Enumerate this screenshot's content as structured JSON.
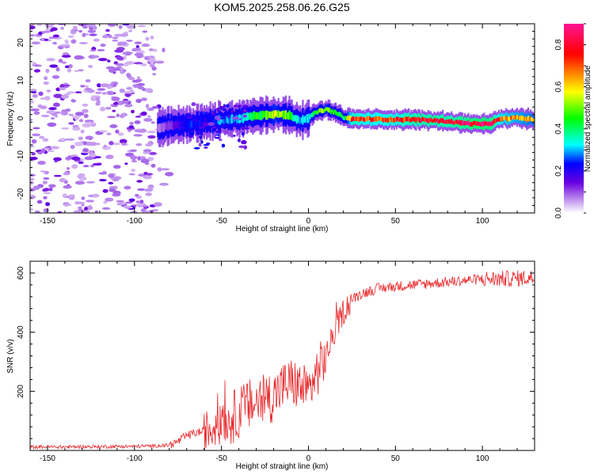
{
  "title": "KOM5.2025.258.06.26.G25",
  "chart_data": [
    {
      "type": "heatmap",
      "xlabel": "Height of straight line (km)",
      "ylabel": "Frequency (Hz)",
      "xlim": [
        -160,
        130
      ],
      "ylim": [
        -25,
        25
      ],
      "xticks": [
        -150,
        -100,
        -50,
        0,
        50,
        100
      ],
      "yticks": [
        -20,
        -10,
        0,
        10,
        20
      ],
      "colorbar": {
        "label": "Normalized spectral amplitude",
        "range": [
          0,
          0.9
        ],
        "ticks": [
          0.0,
          0.2,
          0.4,
          0.6,
          0.8
        ]
      },
      "ridge": {
        "x": [
          -87,
          -80,
          -70,
          -60,
          -50,
          -40,
          -30,
          -20,
          -12,
          -5,
          0,
          5,
          10,
          15,
          20,
          25,
          35,
          50,
          60,
          70,
          80,
          90,
          100,
          105,
          110,
          120,
          130
        ],
        "freq": [
          -2.5,
          -2,
          -1.5,
          -1,
          -0.5,
          0,
          0.8,
          1.2,
          0.8,
          -0.5,
          0.3,
          1.8,
          2.3,
          1.5,
          0.2,
          -0.2,
          -0.2,
          -0.3,
          -0.3,
          -0.5,
          -0.8,
          -1.3,
          -1.6,
          -1.2,
          -0.2,
          0.2,
          -0.5
        ],
        "amplitude": [
          0.08,
          0.12,
          0.25,
          0.22,
          0.3,
          0.3,
          0.45,
          0.55,
          0.5,
          0.3,
          0.35,
          0.5,
          0.55,
          0.45,
          0.4,
          0.78,
          0.72,
          0.75,
          0.8,
          0.82,
          0.8,
          0.85,
          0.88,
          0.85,
          0.7,
          0.65,
          0.6
        ]
      },
      "noise_region": [
        -160,
        -88
      ]
    },
    {
      "type": "line",
      "xlabel": "Height of straight line (km)",
      "ylabel": "SNR (v/v)",
      "xlim": [
        -160,
        130
      ],
      "ylim": [
        0,
        640
      ],
      "xticks": [
        -150,
        -100,
        -50,
        0,
        50,
        100
      ],
      "yticks": [
        200,
        400,
        600
      ],
      "series": [
        {
          "name": "SNR",
          "color": "#e8282b",
          "x": [
            -160,
            -140,
            -120,
            -100,
            -90,
            -80,
            -75,
            -70,
            -65,
            -60,
            -55,
            -50,
            -45,
            -40,
            -35,
            -30,
            -25,
            -20,
            -15,
            -10,
            -5,
            0,
            5,
            10,
            15,
            20,
            25,
            30,
            40,
            50,
            60,
            70,
            80,
            90,
            100,
            110,
            120,
            130
          ],
          "y": [
            12,
            12,
            13,
            14,
            15,
            18,
            30,
            50,
            60,
            65,
            75,
            85,
            105,
            130,
            150,
            160,
            175,
            185,
            215,
            230,
            215,
            200,
            265,
            320,
            400,
            470,
            510,
            530,
            548,
            555,
            560,
            565,
            570,
            575,
            580,
            580,
            582,
            585
          ]
        }
      ]
    }
  ]
}
